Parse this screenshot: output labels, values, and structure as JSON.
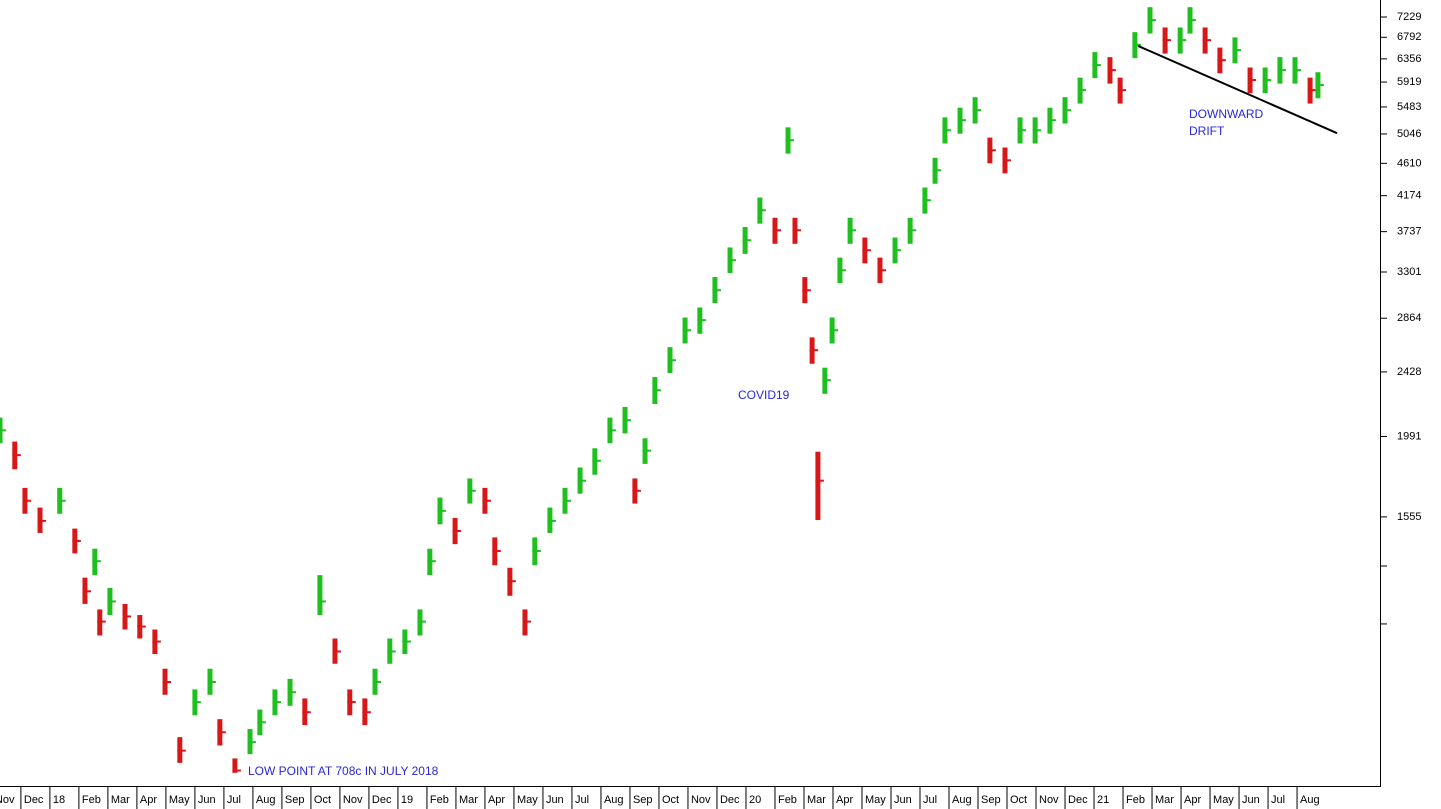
{
  "chart_data": {
    "type": "hlc",
    "log_scale": true,
    "up_color": "#1fbf1f",
    "down_color": "#d81818",
    "ylim": [
      682,
      7617
    ],
    "yticks": [
      7229,
      6792,
      6356,
      5919,
      5483,
      5046,
      4610,
      4174,
      3737,
      3301,
      2864,
      2428,
      1991,
      1555
    ],
    "yticks_unlabeled": [
      1337,
      1119
    ],
    "xlim": [
      -1.72,
      45.86
    ],
    "xticks": [
      {
        "value": -2,
        "label": "Nov"
      },
      {
        "value": -1,
        "label": "Dec"
      },
      {
        "value": 0,
        "label": "18"
      },
      {
        "value": 1,
        "label": "Feb"
      },
      {
        "value": 2,
        "label": "Mar"
      },
      {
        "value": 3,
        "label": "Apr"
      },
      {
        "value": 4,
        "label": "May"
      },
      {
        "value": 5,
        "label": "Jun"
      },
      {
        "value": 6,
        "label": "Jul"
      },
      {
        "value": 7,
        "label": "Aug"
      },
      {
        "value": 8,
        "label": "Sep"
      },
      {
        "value": 9,
        "label": "Oct"
      },
      {
        "value": 10,
        "label": "Nov"
      },
      {
        "value": 11,
        "label": "Dec"
      },
      {
        "value": 12,
        "label": "19"
      },
      {
        "value": 13,
        "label": "Feb"
      },
      {
        "value": 14,
        "label": "Mar"
      },
      {
        "value": 15,
        "label": "Apr"
      },
      {
        "value": 16,
        "label": "May"
      },
      {
        "value": 17,
        "label": "Jun"
      },
      {
        "value": 18,
        "label": "Jul"
      },
      {
        "value": 19,
        "label": "Aug"
      },
      {
        "value": 20,
        "label": "Sep"
      },
      {
        "value": 21,
        "label": "Oct"
      },
      {
        "value": 22,
        "label": "Nov"
      },
      {
        "value": 23,
        "label": "Dec"
      },
      {
        "value": 24,
        "label": "20"
      },
      {
        "value": 25,
        "label": "Feb"
      },
      {
        "value": 26,
        "label": "Mar"
      },
      {
        "value": 27,
        "label": "Apr"
      },
      {
        "value": 28,
        "label": "May"
      },
      {
        "value": 29,
        "label": "Jun"
      },
      {
        "value": 30,
        "label": "Jul"
      },
      {
        "value": 31,
        "label": "Aug"
      },
      {
        "value": 32,
        "label": "Sep"
      },
      {
        "value": 33,
        "label": "Oct"
      },
      {
        "value": 34,
        "label": "Nov"
      },
      {
        "value": 35,
        "label": "Dec"
      },
      {
        "value": 36,
        "label": "21"
      },
      {
        "value": 37,
        "label": "Feb"
      },
      {
        "value": 38,
        "label": "Mar"
      },
      {
        "value": 39,
        "label": "Apr"
      },
      {
        "value": 40,
        "label": "May"
      },
      {
        "value": 41,
        "label": "Jun"
      },
      {
        "value": 42,
        "label": "Jul"
      },
      {
        "value": 43,
        "label": "Aug"
      }
    ],
    "x": [
      -1.72,
      -1.21,
      -0.86,
      -0.34,
      0.34,
      0.86,
      1.21,
      1.55,
      1.72,
      2.07,
      2.59,
      3.1,
      3.62,
      3.97,
      4.48,
      5.0,
      5.52,
      5.86,
      6.38,
      6.9,
      7.24,
      7.76,
      8.28,
      8.79,
      9.31,
      9.83,
      10.34,
      10.86,
      11.21,
      11.72,
      12.24,
      12.76,
      13.1,
      13.45,
      13.97,
      14.48,
      15.0,
      15.34,
      15.86,
      16.38,
      16.72,
      17.24,
      17.76,
      18.28,
      18.79,
      19.31,
      19.83,
      20.17,
      20.52,
      20.86,
      21.38,
      21.9,
      22.41,
      22.93,
      23.45,
      23.97,
      24.48,
      25.0,
      25.45,
      25.69,
      26.03,
      26.28,
      26.48,
      26.72,
      26.97,
      27.24,
      27.59,
      28.1,
      28.62,
      29.14,
      29.66,
      30.17,
      30.52,
      30.86,
      31.38,
      31.9,
      32.41,
      32.93,
      33.45,
      33.97,
      34.48,
      35.0,
      35.52,
      36.03,
      36.55,
      36.9,
      37.41,
      37.93,
      38.45,
      38.97,
      39.31,
      39.83,
      40.34,
      40.86,
      41.38,
      41.9,
      42.41,
      42.93,
      43.45,
      43.72
    ],
    "high": [
      2110,
      1960,
      1700,
      1600,
      1700,
      1500,
      1290,
      1410,
      1170,
      1250,
      1190,
      1150,
      1100,
      975,
      790,
      915,
      975,
      835,
      740,
      810,
      860,
      915,
      945,
      890,
      1300,
      1070,
      915,
      890,
      975,
      1070,
      1100,
      1170,
      1410,
      1650,
      1550,
      1750,
      1700,
      1460,
      1330,
      1170,
      1460,
      1600,
      1700,
      1810,
      1920,
      2110,
      2180,
      1750,
      1980,
      2390,
      2620,
      2870,
      2960,
      3250,
      3560,
      3790,
      4150,
      3900,
      5150,
      3900,
      3250,
      2700,
      1900,
      2460,
      2870,
      3450,
      3900,
      3670,
      3450,
      3670,
      3900,
      4280,
      4690,
      5310,
      5470,
      5650,
      4990,
      4840,
      5310,
      5310,
      5470,
      5650,
      6000,
      6490,
      6390,
      6000,
      6900,
      7450,
      7000,
      7000,
      7450,
      7000,
      6580,
      6790,
      6190,
      6190,
      6390,
      6390,
      6000,
      6100
    ],
    "low": [
      1950,
      1800,
      1570,
      1480,
      1570,
      1390,
      1190,
      1300,
      1080,
      1150,
      1100,
      1070,
      1020,
      900,
      730,
      845,
      900,
      770,
      708,
      750,
      795,
      845,
      870,
      820,
      1150,
      990,
      845,
      820,
      900,
      990,
      1020,
      1080,
      1300,
      1520,
      1430,
      1620,
      1570,
      1340,
      1220,
      1080,
      1340,
      1480,
      1570,
      1670,
      1770,
      1950,
      2010,
      1620,
      1830,
      2200,
      2420,
      2650,
      2730,
      3000,
      3290,
      3490,
      3830,
      3600,
      4750,
      3600,
      3000,
      2490,
      1540,
      2270,
      2650,
      3190,
      3600,
      3390,
      3190,
      3390,
      3600,
      3950,
      4330,
      4900,
      5050,
      5210,
      4610,
      4470,
      4900,
      4900,
      5050,
      5210,
      5540,
      5990,
      5890,
      5540,
      6370,
      6870,
      6460,
      6460,
      6870,
      6460,
      6080,
      6270,
      5720,
      5720,
      5890,
      5890,
      5540,
      5630
    ],
    "close": [
      2029,
      1880,
      1634,
      1536,
      1634,
      1444,
      1237,
      1357,
      1127,
      1199,
      1145,
      1110,
      1060,
      936,
      758,
      880,
      936,
      802,
      713,
      778,
      827,
      880,
      907,
      853,
      1199,
      1028,
      880,
      853,
      936,
      1028,
      1060,
      1127,
      1357,
      1584,
      1489,
      1685,
      1634,
      1400,
      1276,
      1127,
      1400,
      1536,
      1634,
      1738,
      1848,
      2029,
      2093,
      1685,
      1906,
      2295,
      2517,
      2760,
      2847,
      3121,
      3423,
      3640,
      3991,
      3753,
      4950,
      3753,
      3121,
      2596,
      1738,
      2367,
      2760,
      3319,
      3753,
      3530,
      3319,
      3530,
      3753,
      4116,
      4513,
      5104,
      5264,
      5429,
      4799,
      4653,
      5104,
      5104,
      5264,
      5429,
      5774,
      6236,
      6140,
      5774,
      6637,
      7160,
      6733,
      6733,
      7160,
      6733,
      6331,
      6530,
      5956,
      5956,
      6140,
      6140,
      5774,
      5864
    ],
    "trendline": {
      "x": [
        37.52,
        44.38
      ],
      "y": [
        6614,
        5058
      ]
    },
    "annotations": {
      "low_point": "LOW POINT AT 708c IN JULY 2018",
      "covid": "COVID19",
      "drift": [
        "DOWNWARD",
        "DRIFT"
      ]
    }
  }
}
